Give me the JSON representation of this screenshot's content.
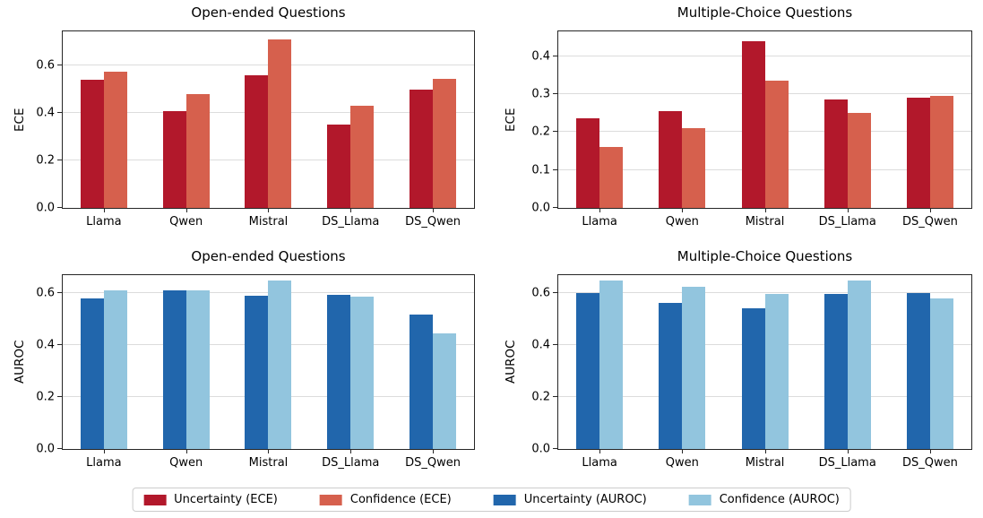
{
  "figure": {
    "background": "#ffffff"
  },
  "colors": {
    "uncertainty_ece": "#b2182b",
    "confidence_ece": "#d6604d",
    "uncertainty_auroc": "#2166ac",
    "confidence_auroc": "#92c5de",
    "grid": "#dcdcdc",
    "spine": "#262626"
  },
  "chart_data": [
    {
      "id": "ece-open-ended",
      "type": "bar",
      "title": "Open-ended Questions",
      "xlabel": "",
      "ylabel": "ECE",
      "categories": [
        "Llama",
        "Qwen",
        "Mistral",
        "DS_Llama",
        "DS_Qwen"
      ],
      "series": [
        {
          "name": "Uncertainty (ECE)",
          "color": "#b2182b",
          "values": [
            0.54,
            0.41,
            0.56,
            0.35,
            0.5
          ]
        },
        {
          "name": "Confidence (ECE)",
          "color": "#d6604d",
          "values": [
            0.575,
            0.48,
            0.71,
            0.43,
            0.545
          ]
        }
      ],
      "yticks": [
        0,
        0.2,
        0.4,
        0.6
      ],
      "ylim": [
        0,
        0.745
      ],
      "grid": true,
      "legend_position": "figure-bottom"
    },
    {
      "id": "ece-multiple-choice",
      "type": "bar",
      "title": "Multiple-Choice Questions",
      "xlabel": "",
      "ylabel": "ECE",
      "categories": [
        "Llama",
        "Qwen",
        "Mistral",
        "DS_Llama",
        "DS_Qwen"
      ],
      "series": [
        {
          "name": "Uncertainty (ECE)",
          "color": "#b2182b",
          "values": [
            0.235,
            0.255,
            0.44,
            0.285,
            0.29
          ]
        },
        {
          "name": "Confidence (ECE)",
          "color": "#d6604d",
          "values": [
            0.16,
            0.21,
            0.335,
            0.25,
            0.295
          ]
        }
      ],
      "yticks": [
        0,
        0.1,
        0.2,
        0.3,
        0.4
      ],
      "ylim": [
        0,
        0.465
      ],
      "grid": true,
      "legend_position": "figure-bottom"
    },
    {
      "id": "auroc-open-ended",
      "type": "bar",
      "title": "Open-ended Questions",
      "xlabel": "",
      "ylabel": "AUROC",
      "categories": [
        "Llama",
        "Qwen",
        "Mistral",
        "DS_Llama",
        "DS_Qwen"
      ],
      "series": [
        {
          "name": "Uncertainty (AUROC)",
          "color": "#2166ac",
          "values": [
            0.578,
            0.61,
            0.587,
            0.591,
            0.515
          ]
        },
        {
          "name": "Confidence (AUROC)",
          "color": "#92c5de",
          "values": [
            0.61,
            0.609,
            0.648,
            0.583,
            0.443
          ]
        }
      ],
      "yticks": [
        0,
        0.2,
        0.4,
        0.6
      ],
      "ylim": [
        0,
        0.667
      ],
      "grid": true,
      "legend_position": "figure-bottom"
    },
    {
      "id": "auroc-multiple-choice",
      "type": "bar",
      "title": "Multiple-Choice Questions",
      "xlabel": "",
      "ylabel": "AUROC",
      "categories": [
        "Llama",
        "Qwen",
        "Mistral",
        "DS_Llama",
        "DS_Qwen"
      ],
      "series": [
        {
          "name": "Uncertainty (AUROC)",
          "color": "#2166ac",
          "values": [
            0.6,
            0.562,
            0.54,
            0.595,
            0.598
          ]
        },
        {
          "name": "Confidence (AUROC)",
          "color": "#92c5de",
          "values": [
            0.647,
            0.622,
            0.595,
            0.645,
            0.578
          ]
        }
      ],
      "yticks": [
        0,
        0.2,
        0.4,
        0.6
      ],
      "ylim": [
        0,
        0.667
      ],
      "grid": true,
      "legend_position": "figure-bottom"
    }
  ],
  "legend": {
    "items": [
      {
        "label": "Uncertainty (ECE)",
        "color": "#b2182b"
      },
      {
        "label": "Confidence (ECE)",
        "color": "#d6604d"
      },
      {
        "label": "Uncertainty (AUROC)",
        "color": "#2166ac"
      },
      {
        "label": "Confidence (AUROC)",
        "color": "#92c5de"
      }
    ]
  }
}
